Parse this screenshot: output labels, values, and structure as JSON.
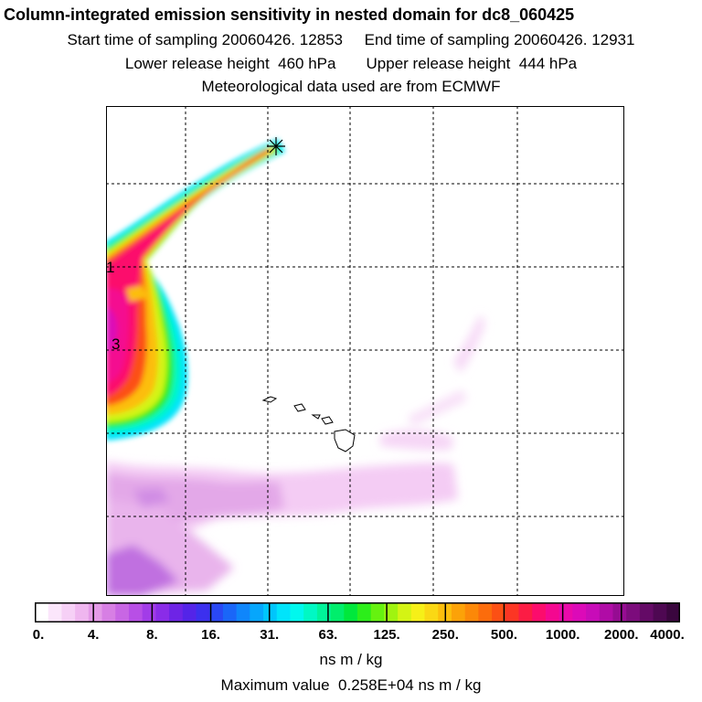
{
  "title": "Column-integrated emission sensitivity in nested domain for dc8_060425",
  "sampling": {
    "start": "Start time of sampling 20060426. 12853",
    "end": "End time of sampling 20060426. 12931"
  },
  "release": {
    "lower": "Lower release height  460 hPa",
    "upper": "Upper release height  444 hPa"
  },
  "met": "Meteorological data used are from ECMWF",
  "map_labels": [
    "1",
    "3"
  ],
  "colorbar": {
    "ticks": [
      "0.",
      "4.",
      "8.",
      "16.",
      "31.",
      "63.",
      "125.",
      "250.",
      "500.",
      "1000.",
      "2000.",
      "4000."
    ],
    "colors": [
      "#ffffff",
      "#fbe6fb",
      "#f6d0f6",
      "#efb6ef",
      "#e49ae8",
      "#d77fe4",
      "#c866e4",
      "#b84fe6",
      "#a23ce8",
      "#8a2ce8",
      "#6e24e6",
      "#5424e8",
      "#3c30ee",
      "#2a48f4",
      "#1a66f8",
      "#0f86fb",
      "#06a6fc",
      "#00c6fc",
      "#00e4fb",
      "#00f8ee",
      "#00f8c4",
      "#00f39a",
      "#00ee6c",
      "#00e83c",
      "#2cee1a",
      "#66f210",
      "#a0f410",
      "#d4f414",
      "#f6f018",
      "#fad814",
      "#fcbe0c",
      "#fca208",
      "#fc8808",
      "#fc6c0c",
      "#fc5014",
      "#fc3624",
      "#fc1c44",
      "#fc0c6c",
      "#f40890",
      "#ea0aaa",
      "#dc0ab8",
      "#c80cb8",
      "#b00ca6",
      "#960c92",
      "#7c0c7c",
      "#640a66",
      "#4e0852",
      "#3a063e"
    ],
    "units": "ns m / kg"
  },
  "max_value": "Maximum value  0.258E+04 ns m / kg",
  "chart_data": {
    "type": "heatmap",
    "title": "Column-integrated emission sensitivity in nested domain for dc8_060425",
    "colorbar_levels": [
      0,
      4,
      8,
      16,
      31,
      63,
      125,
      250,
      500,
      1000,
      2000,
      4000
    ],
    "units": "ns m / kg",
    "max_value": 2580,
    "contour_labels": [
      "1",
      "3"
    ],
    "release_point_marker": "star",
    "features": [
      "plume from release point toward west",
      "hook of high sensitivity at western edge",
      "weak sensitivity band in south",
      "Hawaiian islands outline"
    ]
  }
}
